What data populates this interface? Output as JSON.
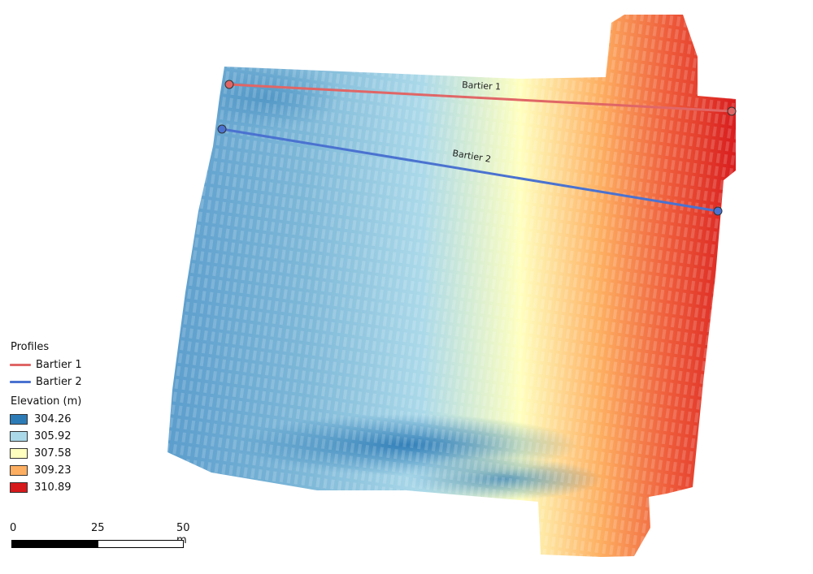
{
  "map": {
    "profiles": [
      {
        "name": "Bartier 1",
        "color": "#e06666"
      },
      {
        "name": "Bartier 2",
        "color": "#4a72d0"
      }
    ],
    "legend": {
      "profiles_title": "Profiles",
      "elevation_title": "Elevation (m)",
      "elevation_classes": [
        {
          "value": "304.26",
          "color": "#2c7bb6"
        },
        {
          "value": "305.92",
          "color": "#abd9e9"
        },
        {
          "value": "307.58",
          "color": "#ffffbf"
        },
        {
          "value": "309.23",
          "color": "#fdae61"
        },
        {
          "value": "310.89",
          "color": "#d7191c"
        }
      ]
    },
    "scalebar": {
      "labels": [
        "0",
        "25",
        "50 m"
      ]
    }
  }
}
